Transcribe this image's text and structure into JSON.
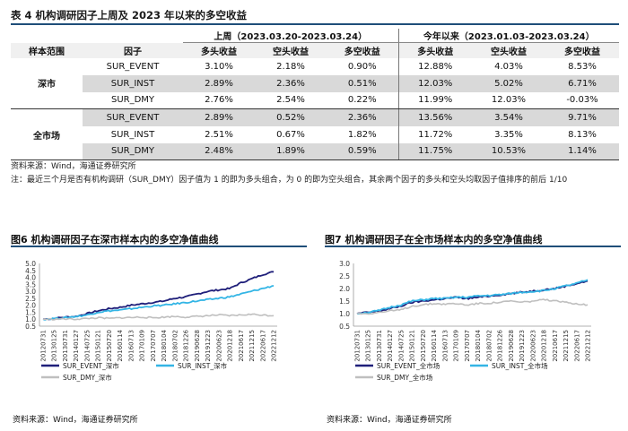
{
  "table": {
    "title": "表 4 机构调研因子上周及 2023 年以来的多空收益",
    "period1": "上周（2023.03.20-2023.03.24）",
    "period2": "今年以来（2023.01.03-2023.03.24）",
    "headers": [
      "样本范围",
      "因子",
      "多头收益",
      "空头收益",
      "多空收益",
      "多头收益",
      "空头收益",
      "多空收益"
    ],
    "groups": [
      {
        "name": "深市",
        "rows": [
          [
            "SUR_EVENT",
            "3.10%",
            "2.18%",
            "0.90%",
            "12.88%",
            "4.03%",
            "8.53%"
          ],
          [
            "SUR_INST",
            "2.89%",
            "2.36%",
            "0.51%",
            "12.03%",
            "5.02%",
            "6.71%"
          ],
          [
            "SUR_DMY",
            "2.76%",
            "2.54%",
            "0.22%",
            "11.99%",
            "12.03%",
            "-0.03%"
          ]
        ]
      },
      {
        "name": "全市场",
        "rows": [
          [
            "SUR_EVENT",
            "2.89%",
            "0.52%",
            "2.36%",
            "13.56%",
            "3.54%",
            "9.71%"
          ],
          [
            "SUR_INST",
            "2.51%",
            "0.67%",
            "1.82%",
            "11.72%",
            "3.35%",
            "8.13%"
          ],
          [
            "SUR_DMY",
            "2.48%",
            "1.89%",
            "0.59%",
            "11.75%",
            "10.53%",
            "1.14%"
          ]
        ]
      }
    ],
    "source": "资料来源：Wind，海通证券研究所",
    "footnote": "注：最近三个月是否有机构调研（SUR_DMY）因子值为 1 的即为多头组合，为 0 的即为空头组合，其余两个因子的多头和空头均取因子值排序的前后 1/10"
  },
  "figures": [
    {
      "title": "图6  机构调研因子在深市样本内的多空净值曲线",
      "source": "资料来源：Wind，海通证券研究所",
      "chart_data": {
        "type": "line",
        "yticks": [
          "5.0",
          "4.5",
          "4.0",
          "3.5",
          "3.0",
          "2.5",
          "2.0",
          "1.5",
          "1.0",
          "0.5"
        ],
        "ylim": [
          0.5,
          5.0
        ],
        "xticks": [
          "20120731",
          "20130125",
          "20130731",
          "20140127",
          "20140725",
          "20150121",
          "20150720",
          "20160114",
          "20160713",
          "20170109",
          "20170707",
          "20180104",
          "20180702",
          "20181226",
          "20190628",
          "20191223",
          "20200623",
          "20201218",
          "20210617",
          "20211215",
          "20220617",
          "20221212"
        ],
        "series": [
          {
            "name": "SUR_EVENT_深市",
            "color": "#1f1f7a",
            "values": [
              1.0,
              1.05,
              1.15,
              1.2,
              1.4,
              1.6,
              1.75,
              1.85,
              2.0,
              2.1,
              2.2,
              2.3,
              2.5,
              2.6,
              2.8,
              3.0,
              3.1,
              3.2,
              3.6,
              3.9,
              4.2,
              4.4
            ]
          },
          {
            "name": "SUR_INST_深市",
            "color": "#33b5e5",
            "values": [
              1.0,
              1.05,
              1.1,
              1.2,
              1.3,
              1.5,
              1.6,
              1.65,
              1.75,
              1.85,
              1.95,
              2.0,
              2.1,
              2.2,
              2.3,
              2.4,
              2.5,
              2.6,
              2.8,
              3.0,
              3.2,
              3.4
            ]
          },
          {
            "name": "SUR_DMY_深市",
            "color": "#bfbfbf",
            "values": [
              1.0,
              1.0,
              1.02,
              1.0,
              1.05,
              1.1,
              1.05,
              1.1,
              1.12,
              1.15,
              1.1,
              1.15,
              1.2,
              1.15,
              1.2,
              1.25,
              1.3,
              1.25,
              1.3,
              1.35,
              1.3,
              1.25
            ]
          }
        ]
      }
    },
    {
      "title": "图7  机构调研因子在全市场样本内的多空净值曲线",
      "source": "资料来源：Wind，海通证券研究所",
      "chart_data": {
        "type": "line",
        "yticks": [
          "3.0",
          "2.5",
          "2.0",
          "1.5",
          "1.0",
          "0.5"
        ],
        "ylim": [
          0.5,
          3.0
        ],
        "xticks": [
          "20120731",
          "20130125",
          "20130731",
          "20140127",
          "20140725",
          "20150121",
          "20150720",
          "20160114",
          "20160713",
          "20170109",
          "20170707",
          "20180104",
          "20180702",
          "20181226",
          "20190628",
          "20191223",
          "20200623",
          "20201218",
          "20210617",
          "20211215",
          "20220617",
          "20221212"
        ],
        "series": [
          {
            "name": "SUR_EVENT_全市场",
            "color": "#1f1f7a",
            "values": [
              1.0,
              1.05,
              1.1,
              1.2,
              1.3,
              1.45,
              1.5,
              1.55,
              1.6,
              1.65,
              1.6,
              1.65,
              1.7,
              1.75,
              1.8,
              1.85,
              1.9,
              1.95,
              2.0,
              2.1,
              2.2,
              2.3
            ]
          },
          {
            "name": "SUR_INST_全市场",
            "color": "#33b5e5",
            "values": [
              1.0,
              1.05,
              1.12,
              1.25,
              1.35,
              1.5,
              1.55,
              1.6,
              1.6,
              1.65,
              1.65,
              1.7,
              1.72,
              1.75,
              1.8,
              1.85,
              1.88,
              1.92,
              2.0,
              2.1,
              2.2,
              2.35
            ]
          },
          {
            "name": "SUR_DMY_全市场",
            "color": "#bfbfbf",
            "values": [
              1.0,
              1.0,
              1.05,
              1.1,
              1.15,
              1.3,
              1.35,
              1.4,
              1.38,
              1.4,
              1.35,
              1.4,
              1.42,
              1.45,
              1.5,
              1.45,
              1.5,
              1.55,
              1.5,
              1.45,
              1.4,
              1.35
            ]
          }
        ]
      }
    }
  ]
}
